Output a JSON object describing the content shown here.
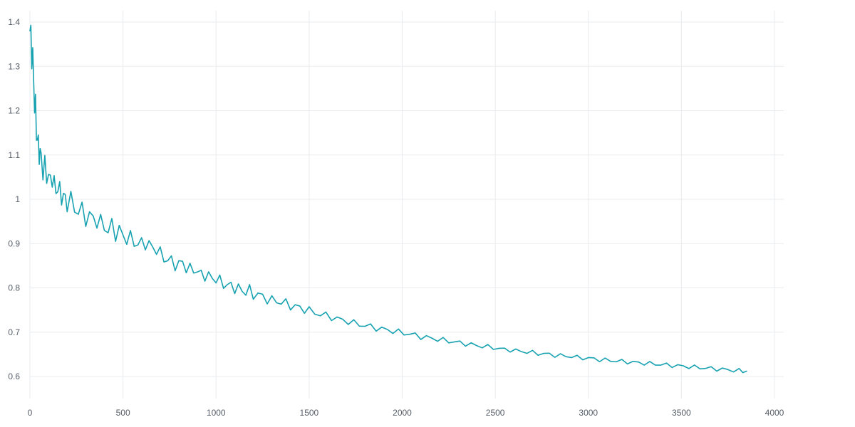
{
  "chart_data": {
    "type": "line",
    "title": "",
    "xlabel": "",
    "ylabel": "",
    "xlim": [
      0,
      4000
    ],
    "ylim": [
      0.58,
      1.42
    ],
    "grid": true,
    "legend": "none",
    "x_ticks": [
      0,
      500,
      1000,
      1500,
      2000,
      2500,
      3000,
      3500,
      4000
    ],
    "x_tick_labels": [
      "0",
      "500",
      "1000",
      "1500",
      "2000",
      "2500",
      "3000",
      "3500",
      "4000"
    ],
    "y_ticks": [
      0.6,
      0.7,
      0.8,
      0.9,
      1.0,
      1.1,
      1.2,
      1.3,
      1.4
    ],
    "y_tick_labels": [
      "0.6",
      "0.7",
      "0.8",
      "0.9",
      "1",
      "1.1",
      "1.2",
      "1.3",
      "1.4"
    ],
    "colors": {
      "series": "#17a2b1",
      "grid": "#e9ebee",
      "tick_text": "#555c66"
    },
    "series": [
      {
        "x": [
          0,
          5,
          10,
          15,
          20,
          25,
          30,
          35,
          40,
          45,
          50,
          55,
          60,
          70,
          80,
          90,
          100,
          110,
          120,
          130,
          140,
          150,
          160,
          170,
          180,
          190,
          200,
          220,
          240,
          260,
          280,
          300,
          320,
          340,
          360,
          380,
          400,
          420,
          440,
          460,
          480,
          500,
          520,
          540,
          560,
          580,
          600,
          620,
          640,
          660,
          680,
          700,
          720,
          740,
          760,
          780,
          800,
          820,
          840,
          860,
          880,
          900,
          920,
          940,
          960,
          980,
          1000,
          1020,
          1040,
          1060,
          1080,
          1100,
          1120,
          1140,
          1160,
          1180,
          1200,
          1225,
          1250,
          1275,
          1300,
          1325,
          1350,
          1375,
          1400,
          1425,
          1450,
          1475,
          1500,
          1530,
          1560,
          1590,
          1620,
          1650,
          1680,
          1710,
          1740,
          1770,
          1800,
          1830,
          1860,
          1890,
          1920,
          1950,
          1980,
          2010,
          2040,
          2070,
          2100,
          2130,
          2160,
          2190,
          2220,
          2250,
          2280,
          2310,
          2340,
          2370,
          2400,
          2430,
          2460,
          2490,
          2520,
          2550,
          2580,
          2610,
          2640,
          2670,
          2700,
          2730,
          2760,
          2790,
          2820,
          2850,
          2880,
          2910,
          2940,
          2970,
          3000,
          3030,
          3060,
          3090,
          3120,
          3150,
          3180,
          3210,
          3240,
          3270,
          3300,
          3330,
          3360,
          3390,
          3420,
          3450,
          3480,
          3510,
          3540,
          3570,
          3600,
          3630,
          3660,
          3690,
          3720,
          3750,
          3780,
          3810,
          3830,
          3850
        ],
        "y": [
          1.38,
          1.36,
          1.34,
          1.31,
          1.27,
          1.22,
          1.2,
          1.16,
          1.13,
          1.125,
          1.11,
          1.09,
          1.11,
          1.06,
          1.07,
          1.06,
          1.05,
          1.04,
          1.055,
          1.03,
          1.02,
          1.03,
          1.015,
          1.01,
          1.005,
          1.0,
          0.995,
          0.995,
          0.98,
          0.975,
          0.972,
          0.96,
          0.962,
          0.955,
          0.955,
          0.945,
          0.94,
          0.93,
          0.938,
          0.925,
          0.93,
          0.915,
          0.915,
          0.91,
          0.905,
          0.9,
          0.898,
          0.905,
          0.895,
          0.89,
          0.89,
          0.875,
          0.87,
          0.862,
          0.86,
          0.855,
          0.85,
          0.86,
          0.845,
          0.84,
          0.845,
          0.835,
          0.83,
          0.83,
          0.825,
          0.823,
          0.82,
          0.815,
          0.81,
          0.805,
          0.805,
          0.8,
          0.798,
          0.795,
          0.79,
          0.795,
          0.785,
          0.785,
          0.78,
          0.775,
          0.772,
          0.77,
          0.768,
          0.765,
          0.76,
          0.758,
          0.755,
          0.752,
          0.748,
          0.745,
          0.74,
          0.737,
          0.735,
          0.73,
          0.727,
          0.725,
          0.72,
          0.718,
          0.715,
          0.712,
          0.71,
          0.707,
          0.705,
          0.703,
          0.7,
          0.698,
          0.696,
          0.693,
          0.69,
          0.688,
          0.686,
          0.684,
          0.682,
          0.68,
          0.678,
          0.676,
          0.674,
          0.672,
          0.67,
          0.668,
          0.667,
          0.665,
          0.663,
          0.661,
          0.66,
          0.658,
          0.657,
          0.655,
          0.654,
          0.652,
          0.651,
          0.65,
          0.648,
          0.647,
          0.646,
          0.645,
          0.643,
          0.642,
          0.641,
          0.64,
          0.638,
          0.637,
          0.636,
          0.635,
          0.634,
          0.633,
          0.632,
          0.631,
          0.63,
          0.629,
          0.628,
          0.627,
          0.626,
          0.625,
          0.624,
          0.623,
          0.622,
          0.621,
          0.62,
          0.619,
          0.618,
          0.617,
          0.616,
          0.615,
          0.614,
          0.613,
          0.612,
          0.612
        ]
      }
    ]
  }
}
